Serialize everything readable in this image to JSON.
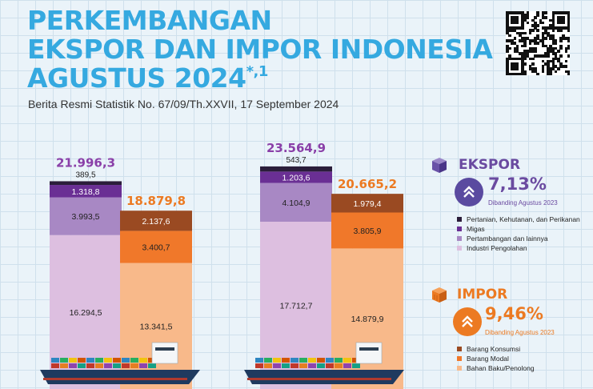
{
  "header": {
    "title_line1": "PERKEMBANGAN",
    "title_line2": "EKSPOR DAN IMPOR INDONESIA",
    "title_line3": "AGUSTUS 2024",
    "title_note": "*,1",
    "subtitle": "Berita Resmi Statistik No. 67/09/Th.XXVII, 17 September 2024"
  },
  "qr_icon": "qr-code-icon",
  "colors": {
    "title": "#35a9e0",
    "export_totals": "#8a3fa8",
    "import_totals": "#ec7a22",
    "export_pertanian": "#2b1d3a",
    "export_migas": "#6a2f94",
    "export_pertambangan": "#a888c4",
    "export_industri": "#ddbfe0",
    "import_konsumsi": "#9a4a22",
    "import_modal": "#f0782a",
    "import_bahan_baku": "#f8b98a"
  },
  "chart_data": {
    "type": "bar",
    "stacked": true,
    "unit": "",
    "groups": [
      {
        "export_total": "21.996,3",
        "import_total": "18.879,8",
        "export": [
          {
            "series": "Industri Pengolahan",
            "value": 16294.5,
            "label": "16.294,5"
          },
          {
            "series": "Pertambangan dan lainnya",
            "value": 3993.5,
            "label": "3.993,5"
          },
          {
            "series": "Migas",
            "value": 1318.8,
            "label": "1.318,8"
          },
          {
            "series": "Pertanian, Kehutanan, dan Perikanan",
            "value": 389.5,
            "label": "389,5"
          }
        ],
        "import": [
          {
            "series": "Bahan Baku/Penolong",
            "value": 13341.5,
            "label": "13.341,5"
          },
          {
            "series": "Barang Modal",
            "value": 3400.7,
            "label": "3.400,7"
          },
          {
            "series": "Barang Konsumsi",
            "value": 2137.6,
            "label": "2.137,6"
          }
        ]
      },
      {
        "export_total": "23.564,9",
        "import_total": "20.665,2",
        "export": [
          {
            "series": "Industri Pengolahan",
            "value": 17712.7,
            "label": "17.712,7"
          },
          {
            "series": "Pertambangan dan lainnya",
            "value": 4104.9,
            "label": "4.104,9"
          },
          {
            "series": "Migas",
            "value": 1203.6,
            "label": "1.203,6"
          },
          {
            "series": "Pertanian, Kehutanan, dan Perikanan",
            "value": 543.7,
            "label": "543,7"
          }
        ],
        "import": [
          {
            "series": "Bahan Baku/Penolong",
            "value": 14879.9,
            "label": "14.879,9"
          },
          {
            "series": "Barang Modal",
            "value": 3805.9,
            "label": "3.805,9"
          },
          {
            "series": "Barang Konsumsi",
            "value": 1979.4,
            "label": "1.979,4"
          }
        ]
      }
    ]
  },
  "ekspor": {
    "title": "EKSPOR",
    "growth": "7,13%",
    "note": "Dibanding Agustus 2023",
    "icon": "box-icon",
    "arrow_icon": "double-chevron-up-icon",
    "legend": [
      {
        "label": "Pertanian, Kehutanan, dan Perikanan",
        "color": "#2b1d3a"
      },
      {
        "label": "Migas",
        "color": "#6a2f94"
      },
      {
        "label": "Pertambangan dan lainnya",
        "color": "#a888c4"
      },
      {
        "label": "Industri Pengolahan",
        "color": "#ddbfe0"
      }
    ]
  },
  "impor": {
    "title": "IMPOR",
    "growth": "9,46%",
    "note": "Dibanding Agustus 2023",
    "icon": "container-icon",
    "arrow_icon": "double-chevron-up-icon",
    "legend": [
      {
        "label": "Barang Konsumsi",
        "color": "#9a4a22"
      },
      {
        "label": "Barang Modal",
        "color": "#f0782a"
      },
      {
        "label": "Bahan Baku/Penolong",
        "color": "#f8b98a"
      }
    ]
  }
}
